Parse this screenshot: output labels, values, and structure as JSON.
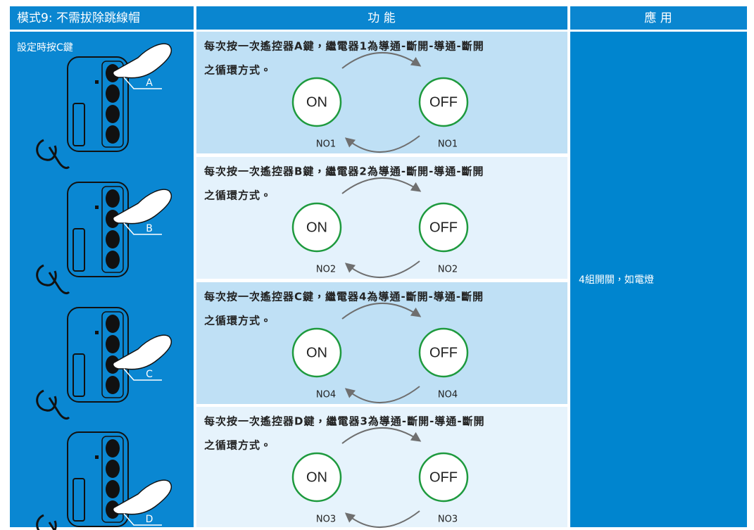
{
  "header": {
    "mode": "模式9: 不需拔除跳線帽",
    "function": "功 能",
    "application": "應 用"
  },
  "left": {
    "title": "設定時按C鍵",
    "keys": [
      "A",
      "B",
      "C",
      "D"
    ]
  },
  "rows": [
    {
      "line1": "每次按一次遙控器A鍵，繼電器1為導通-斷開-導通-斷開",
      "line2": "之循環方式。",
      "on": "ON",
      "off": "OFF",
      "on_label": "NO1",
      "off_label": "NO1"
    },
    {
      "line1": "每次按一次遙控器B鍵，繼電器2為導通-斷開-導通-斷開",
      "line2": "之循環方式。",
      "on": "ON",
      "off": "OFF",
      "on_label": "NO2",
      "off_label": "NO2"
    },
    {
      "line1": "每次按一次遙控器C鍵，繼電器4為導通-斷開-導通-斷開",
      "line2": "之循環方式。",
      "on": "ON",
      "off": "OFF",
      "on_label": "NO4",
      "off_label": "NO4"
    },
    {
      "line1": "每次按一次遙控器D鍵，繼電器3為導通-斷開-導通-斷開",
      "line2": "之循環方式。",
      "on": "ON",
      "off": "OFF",
      "on_label": "NO3",
      "off_label": "NO3"
    }
  ],
  "application": "4組開關，如電燈"
}
